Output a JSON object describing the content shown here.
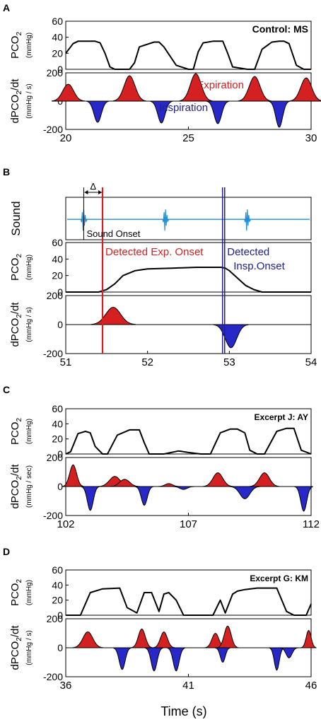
{
  "figure": {
    "xlabel_bottom": "Time (s)"
  },
  "chart_data": [
    {
      "panel": "A",
      "type": "line",
      "title": "Control: MS",
      "xlim": [
        20,
        30
      ],
      "xticks": [
        "20",
        "25",
        "30"
      ],
      "rows": [
        {
          "kind": "pco2",
          "ylabel": "PCO2",
          "ylabel_sub": "2",
          "yunit": "(mmHg)",
          "ylim": [
            0,
            60
          ],
          "yticks": [
            "0",
            "20",
            "40",
            "60"
          ],
          "x": [
            20,
            20.3,
            20.5,
            20.8,
            21.2,
            21.4,
            21.6,
            21.8,
            22.0,
            22.6,
            22.8,
            23.0,
            23.6,
            23.8,
            24.0,
            24.5,
            25.0,
            25.2,
            25.4,
            25.6,
            26.0,
            26.4,
            26.6,
            26.8,
            27.4,
            27.7,
            28.0,
            28.4,
            28.7,
            28.9,
            29.1,
            29.4,
            29.7,
            30.0
          ],
          "y": [
            20,
            32,
            35,
            35,
            35,
            33,
            20,
            3,
            0,
            0,
            8,
            28,
            34,
            34,
            28,
            5,
            0,
            0,
            22,
            33,
            35,
            35,
            20,
            3,
            0,
            0,
            25,
            34,
            35,
            35,
            32,
            5,
            0,
            0
          ]
        },
        {
          "kind": "deriv",
          "ylabel": "dPCO2/dt",
          "ylabel_sub": "2",
          "yunit": "(mmHg / s)",
          "ylim": [
            -200,
            200
          ],
          "yticks": [
            "200",
            "0",
            "-200"
          ],
          "pos_peaks": [
            [
              20.1,
              120,
              0.22
            ],
            [
              22.6,
              180,
              0.22
            ],
            [
              25.3,
              195,
              0.22
            ],
            [
              27.7,
              175,
              0.22
            ],
            [
              29.8,
              165,
              0.22
            ]
          ],
          "neg_peaks": [
            [
              21.3,
              -150,
              0.15
            ],
            [
              23.9,
              -155,
              0.15
            ],
            [
              26.2,
              -160,
              0.15
            ],
            [
              28.7,
              -185,
              0.14
            ]
          ],
          "annotations": [
            {
              "text": "Expiration",
              "x": 26.3,
              "y": 90,
              "color": "#d42020"
            },
            {
              "text": "Inspiration",
              "x": 24.8,
              "y": -70,
              "color": "#202090"
            }
          ]
        }
      ]
    },
    {
      "panel": "B",
      "type": "line",
      "title": "",
      "xlim": [
        51,
        54
      ],
      "xticks": [
        "51",
        "52",
        "53",
        "54"
      ],
      "markers": {
        "sound_onset": 51.22,
        "exp_onset": 51.45,
        "insp_onset": 52.93,
        "delta_label": "Δ",
        "sound_onset_label": "Sound Onset",
        "exp_label": "Detected Exp. Onset",
        "insp_label_1": "Detected",
        "insp_label_2": "Insp.Onset",
        "exp_color": "#d42020",
        "insp_color": "#202090"
      },
      "rows": [
        {
          "kind": "sound",
          "ylabel": "Sound",
          "bursts": [
            51.22,
            52.22,
            53.22
          ]
        },
        {
          "kind": "pco2",
          "ylabel": "PCO2",
          "ylabel_sub": "2",
          "yunit": "(mmHg)",
          "ylim": [
            0,
            60
          ],
          "yticks": [
            "0",
            "20",
            "40",
            "60"
          ],
          "x": [
            51,
            51.4,
            51.5,
            51.6,
            51.7,
            51.85,
            52.0,
            52.3,
            52.6,
            52.9,
            52.95,
            53.0,
            53.1,
            53.2,
            53.3,
            53.4,
            54.0
          ],
          "y": [
            0,
            0,
            3,
            10,
            20,
            26,
            28,
            29,
            30,
            30,
            29,
            26,
            17,
            8,
            3,
            0,
            0
          ]
        },
        {
          "kind": "deriv",
          "ylabel": "dPCO2/dt",
          "ylabel_sub": "2",
          "yunit": "(mmHg / s)",
          "ylim": [
            -200,
            200
          ],
          "yticks": [
            "200",
            "0",
            "-200"
          ],
          "pos_peaks": [
            [
              51.58,
              120,
              0.09
            ]
          ],
          "neg_peaks": [
            [
              53.02,
              -160,
              0.07
            ]
          ],
          "annotations": []
        }
      ]
    },
    {
      "panel": "C",
      "type": "line",
      "title": "Excerpt J: AY",
      "xlim": [
        102,
        112
      ],
      "xticks": [
        "102",
        "107",
        "112"
      ],
      "rows": [
        {
          "kind": "pco2",
          "ylabel": "PCO2",
          "ylabel_sub": "2",
          "yunit": "(mmHg)",
          "ylim": [
            0,
            60
          ],
          "yticks": [
            "0",
            "20",
            "40",
            "60"
          ],
          "x": [
            102,
            102.2,
            102.5,
            102.8,
            103.0,
            103.2,
            103.5,
            103.7,
            104.1,
            104.6,
            105.0,
            105.2,
            105.4,
            106.0,
            106.3,
            106.6,
            107.0,
            107.5,
            107.9,
            108.3,
            108.7,
            109.0,
            109.3,
            109.5,
            109.8,
            110.1,
            110.6,
            111.0,
            111.3,
            111.6,
            112.0
          ],
          "y": [
            0,
            3,
            27,
            30,
            28,
            10,
            0,
            0,
            25,
            32,
            32,
            15,
            0,
            0,
            2,
            4,
            2,
            0,
            0,
            28,
            33,
            33,
            28,
            5,
            0,
            0,
            30,
            34,
            34,
            5,
            0
          ]
        },
        {
          "kind": "deriv",
          "ylabel": "dPCO2/dt",
          "ylabel_sub": "2",
          "yunit": "(mmHg / sec)",
          "ylim": [
            -200,
            200
          ],
          "yticks": [
            "200",
            "0",
            "-200"
          ],
          "pos_peaks": [
            [
              102.3,
              150,
              0.14
            ],
            [
              104.0,
              70,
              0.22
            ],
            [
              104.4,
              50,
              0.2
            ],
            [
              106.2,
              20,
              0.15
            ],
            [
              108.2,
              95,
              0.2
            ],
            [
              110.1,
              95,
              0.2
            ]
          ],
          "neg_peaks": [
            [
              103.0,
              -165,
              0.12
            ],
            [
              105.2,
              -130,
              0.12
            ],
            [
              106.8,
              -20,
              0.15
            ],
            [
              109.3,
              -85,
              0.2
            ],
            [
              111.7,
              -170,
              0.12
            ]
          ],
          "annotations": []
        }
      ]
    },
    {
      "panel": "D",
      "type": "line",
      "title": "Excerpt G: KM",
      "xlim": [
        36,
        46
      ],
      "xticks": [
        "36",
        "41",
        "46"
      ],
      "rows": [
        {
          "kind": "pco2",
          "ylabel": "PCO2",
          "ylabel_sub": "2",
          "yunit": "(mmHg)",
          "ylim": [
            0,
            60
          ],
          "yticks": [
            "0",
            "20",
            "40",
            "60"
          ],
          "x": [
            36,
            36.6,
            37.0,
            37.5,
            38.2,
            38.5,
            38.9,
            39.2,
            39.5,
            39.8,
            40.0,
            40.2,
            40.5,
            40.8,
            41.0,
            41.5,
            42.0,
            42.3,
            42.5,
            42.8,
            43.0,
            43.3,
            43.8,
            44.6,
            45.0,
            45.3,
            45.8,
            46.0
          ],
          "y": [
            0,
            0,
            30,
            35,
            36,
            10,
            3,
            30,
            30,
            5,
            28,
            30,
            20,
            0,
            0,
            0,
            0,
            20,
            3,
            28,
            32,
            34,
            36,
            36,
            5,
            0,
            0,
            15
          ]
        },
        {
          "kind": "deriv",
          "ylabel": "dPCO2/dt",
          "ylabel_sub": "2",
          "yunit": "(mmHg / s)",
          "ylim": [
            -200,
            200
          ],
          "yticks": [
            "200",
            "0",
            "-200"
          ],
          "pos_peaks": [
            [
              36.9,
              110,
              0.2
            ],
            [
              39.1,
              130,
              0.14
            ],
            [
              40.0,
              110,
              0.14
            ],
            [
              42.1,
              100,
              0.14
            ],
            [
              42.6,
              150,
              0.14
            ],
            [
              45.9,
              120,
              0.1
            ]
          ],
          "neg_peaks": [
            [
              38.3,
              -150,
              0.12
            ],
            [
              39.6,
              -160,
              0.12
            ],
            [
              40.5,
              -160,
              0.12
            ],
            [
              42.4,
              -100,
              0.1
            ],
            [
              44.6,
              -155,
              0.1
            ],
            [
              45.1,
              -70,
              0.12
            ]
          ],
          "annotations": []
        }
      ]
    }
  ]
}
